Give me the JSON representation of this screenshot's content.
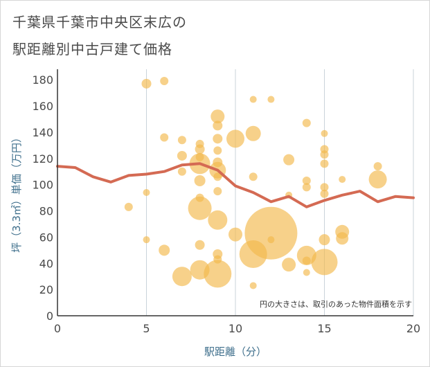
{
  "header": {
    "title_line1": "千葉県千葉市中央区末広の",
    "title_line2": "駅距離別中古戸建て価格"
  },
  "chart_data": {
    "type": "scatter",
    "title": "千葉県千葉市中央区末広の駅距離別中古戸建て価格",
    "xlabel": "駅距離（分）",
    "ylabel": "坪（3.3㎡）単価（万円）",
    "xlim": [
      0,
      20
    ],
    "ylim": [
      0,
      188
    ],
    "xticks": [
      0,
      5,
      10,
      15,
      20
    ],
    "yticks": [
      0,
      20,
      40,
      60,
      80,
      100,
      120,
      140,
      160,
      180
    ],
    "grid": "vertical",
    "note": "円の大きさは、取引のあった物件面積を示す",
    "colors": {
      "bubble": "#f2b84b",
      "line": "#d46a53",
      "axis_text": "#3f6f8c"
    },
    "bubbles": [
      {
        "x": 5,
        "y": 177,
        "s": 7
      },
      {
        "x": 6,
        "y": 179,
        "s": 6
      },
      {
        "x": 6,
        "y": 136,
        "s": 6
      },
      {
        "x": 4,
        "y": 83,
        "s": 6
      },
      {
        "x": 5,
        "y": 94,
        "s": 5
      },
      {
        "x": 5,
        "y": 58,
        "s": 5
      },
      {
        "x": 6,
        "y": 50,
        "s": 8
      },
      {
        "x": 7,
        "y": 134,
        "s": 6
      },
      {
        "x": 7,
        "y": 122,
        "s": 7
      },
      {
        "x": 7,
        "y": 110,
        "s": 6
      },
      {
        "x": 7,
        "y": 30,
        "s": 14
      },
      {
        "x": 8,
        "y": 131,
        "s": 6
      },
      {
        "x": 8,
        "y": 127,
        "s": 7
      },
      {
        "x": 8,
        "y": 121,
        "s": 6
      },
      {
        "x": 8,
        "y": 116,
        "s": 15
      },
      {
        "x": 8,
        "y": 103,
        "s": 8
      },
      {
        "x": 8,
        "y": 90,
        "s": 6
      },
      {
        "x": 8,
        "y": 82,
        "s": 17
      },
      {
        "x": 8,
        "y": 54,
        "s": 7
      },
      {
        "x": 8,
        "y": 35,
        "s": 14
      },
      {
        "x": 9,
        "y": 152,
        "s": 10
      },
      {
        "x": 9,
        "y": 145,
        "s": 7
      },
      {
        "x": 9,
        "y": 135,
        "s": 7
      },
      {
        "x": 9,
        "y": 126,
        "s": 6
      },
      {
        "x": 9,
        "y": 117,
        "s": 7
      },
      {
        "x": 9,
        "y": 111,
        "s": 12
      },
      {
        "x": 9,
        "y": 106,
        "s": 6
      },
      {
        "x": 9,
        "y": 95,
        "s": 6
      },
      {
        "x": 9,
        "y": 73,
        "s": 14
      },
      {
        "x": 9,
        "y": 47,
        "s": 7
      },
      {
        "x": 9,
        "y": 43,
        "s": 6
      },
      {
        "x": 9,
        "y": 32,
        "s": 20
      },
      {
        "x": 10,
        "y": 135,
        "s": 13
      },
      {
        "x": 10,
        "y": 62,
        "s": 10
      },
      {
        "x": 11,
        "y": 165,
        "s": 5
      },
      {
        "x": 11,
        "y": 139,
        "s": 11
      },
      {
        "x": 11,
        "y": 106,
        "s": 6
      },
      {
        "x": 11,
        "y": 47,
        "s": 20
      },
      {
        "x": 11,
        "y": 23,
        "s": 5
      },
      {
        "x": 12,
        "y": 165,
        "s": 5
      },
      {
        "x": 12,
        "y": 63,
        "s": 38
      },
      {
        "x": 12,
        "y": 58,
        "s": 5
      },
      {
        "x": 13,
        "y": 119,
        "s": 8
      },
      {
        "x": 13,
        "y": 92,
        "s": 5
      },
      {
        "x": 13,
        "y": 39,
        "s": 10
      },
      {
        "x": 14,
        "y": 147,
        "s": 6
      },
      {
        "x": 14,
        "y": 103,
        "s": 6
      },
      {
        "x": 14,
        "y": 98,
        "s": 6
      },
      {
        "x": 14,
        "y": 46,
        "s": 14
      },
      {
        "x": 14,
        "y": 42,
        "s": 6
      },
      {
        "x": 14,
        "y": 33,
        "s": 5
      },
      {
        "x": 15,
        "y": 139,
        "s": 5
      },
      {
        "x": 15,
        "y": 127,
        "s": 6
      },
      {
        "x": 15,
        "y": 123,
        "s": 6
      },
      {
        "x": 15,
        "y": 116,
        "s": 6
      },
      {
        "x": 15,
        "y": 98,
        "s": 6
      },
      {
        "x": 15,
        "y": 93,
        "s": 6
      },
      {
        "x": 15,
        "y": 58,
        "s": 8
      },
      {
        "x": 15,
        "y": 41,
        "s": 19
      },
      {
        "x": 16,
        "y": 104,
        "s": 5
      },
      {
        "x": 16,
        "y": 64,
        "s": 10
      },
      {
        "x": 16,
        "y": 59,
        "s": 9
      },
      {
        "x": 18,
        "y": 114,
        "s": 6
      },
      {
        "x": 18,
        "y": 104,
        "s": 13
      }
    ],
    "series": [
      {
        "type": "line",
        "x": [
          0,
          1,
          2,
          3,
          4,
          5,
          6,
          7,
          8,
          9,
          10,
          11,
          12,
          13,
          14,
          15,
          16,
          17,
          18,
          19,
          20
        ],
        "values": [
          114,
          113,
          106,
          102,
          107,
          108,
          110,
          115,
          116,
          111,
          99,
          94,
          87,
          91,
          83,
          88,
          92,
          95,
          87,
          91,
          90
        ]
      }
    ]
  }
}
